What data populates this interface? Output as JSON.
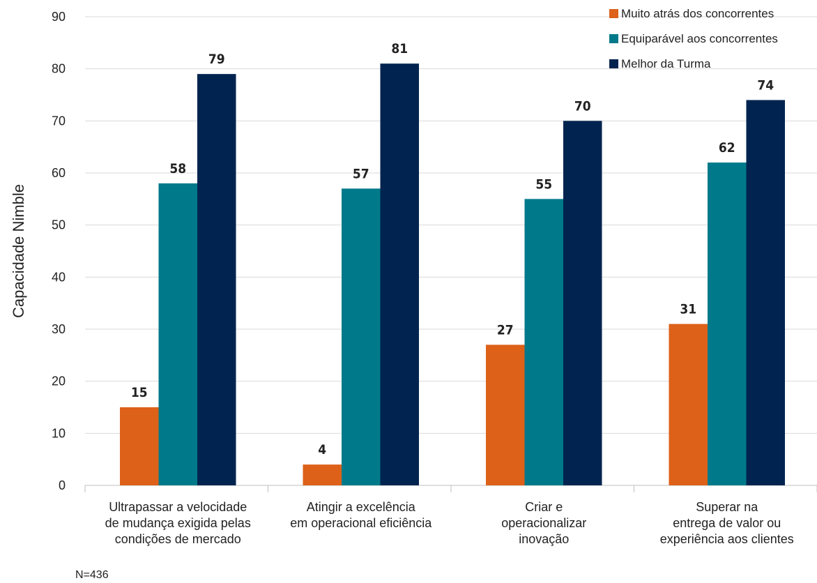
{
  "chart_data": {
    "type": "bar",
    "title": "",
    "ylabel": "Capacidade Nimble",
    "xlabel": "",
    "ylim": [
      0,
      90
    ],
    "yticks": [
      0,
      10,
      20,
      30,
      40,
      50,
      60,
      70,
      80,
      90
    ],
    "grid": true,
    "legend_position": "top-right",
    "categories": [
      [
        "Ultrapassar a velocidade",
        "de mudança exigida pelas",
        "condições de mercado"
      ],
      [
        "Atingir a excelência",
        "em operacional eficiência"
      ],
      [
        "Criar e",
        "operacionalizar",
        "inovação"
      ],
      [
        "Superar na",
        "entrega de valor ou",
        "experiência aos clientes"
      ]
    ],
    "series": [
      {
        "name": "Muito atrás dos concorrentes",
        "color": "#dd6119",
        "values": [
          15,
          4,
          27,
          31
        ]
      },
      {
        "name": "Equiparável aos concorrentes",
        "color": "#007a8a",
        "values": [
          58,
          57,
          55,
          62
        ]
      },
      {
        "name": "Melhor da Turma",
        "color": "#00244f",
        "values": [
          79,
          81,
          70,
          74
        ]
      }
    ],
    "footnote": "N=436"
  }
}
